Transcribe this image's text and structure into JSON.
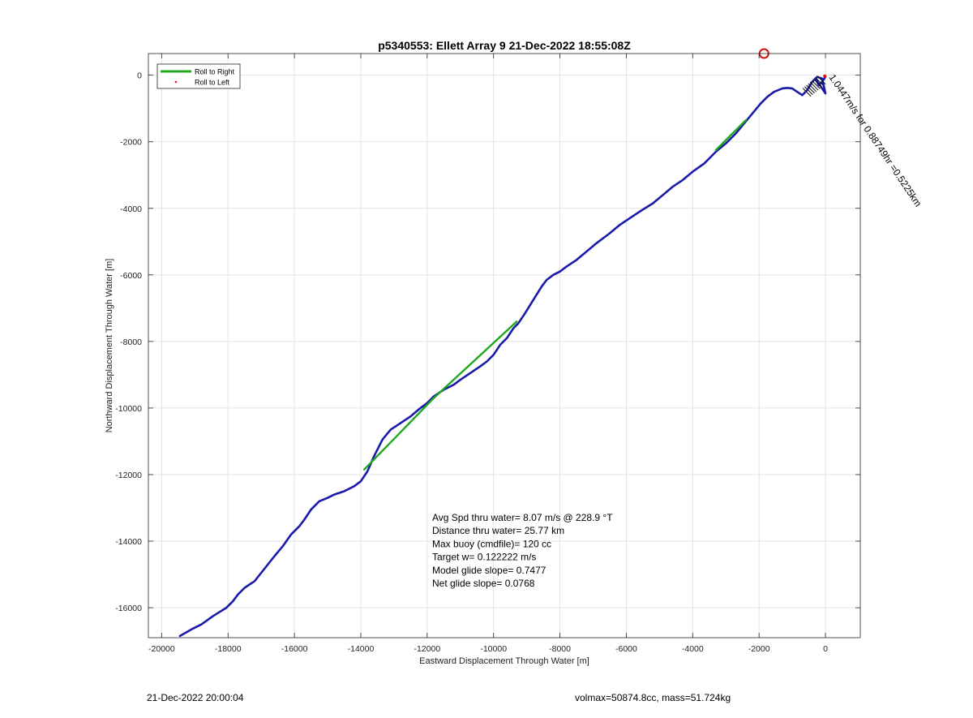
{
  "chart_data": {
    "type": "line",
    "title": "p5340553: Ellett Array 9 21-Dec-2022 18:55:08Z",
    "xlabel": "Eastward Displacement Through Water [m]",
    "ylabel": "Northward Displacement Through Water [m]",
    "xlim": [
      -20400,
      1050
    ],
    "ylim": [
      -16900,
      650
    ],
    "xticks": [
      -20000,
      -18000,
      -16000,
      -14000,
      -12000,
      -10000,
      -8000,
      -6000,
      -4000,
      -2000,
      0
    ],
    "yticks": [
      0,
      -2000,
      -4000,
      -6000,
      -8000,
      -10000,
      -12000,
      -14000,
      -16000
    ],
    "grid": true,
    "legend": {
      "placement": "top-left",
      "entries": [
        {
          "label": "Roll to Right",
          "color": "#1fa81f",
          "style": "line"
        },
        {
          "label": "Roll to Left",
          "color": "#e01010",
          "style": "dot"
        }
      ]
    },
    "series": [
      {
        "name": "Roll to Right",
        "color": "#1fa81f",
        "x": [
          -13900,
          -11800,
          -9300
        ],
        "y": [
          -11850,
          -9700,
          -7400
        ]
      },
      {
        "name": "Roll to Right",
        "color": "#1fa81f",
        "x": [
          -3300,
          -2400
        ],
        "y": [
          -2250,
          -1350
        ]
      },
      {
        "color": "#1a1aaa",
        "x": [
          -19450,
          -19100,
          -18800,
          -18450,
          -18050,
          -17850,
          -17700,
          -17500,
          -17200,
          -17000,
          -16800,
          -16600,
          -16350,
          -16100,
          -15850,
          -15700,
          -15500,
          -15250,
          -15000,
          -14800,
          -14500,
          -14200,
          -14000,
          -13800,
          -13600,
          -13350,
          -13100,
          -12800,
          -12500,
          -12200,
          -12000,
          -11800,
          -11500,
          -11200,
          -11000,
          -10700,
          -10400,
          -10200,
          -10000,
          -9800,
          -9600,
          -9400,
          -9250,
          -9050,
          -8800,
          -8550,
          -8400,
          -8200,
          -8000,
          -7800,
          -7500,
          -7200,
          -6900,
          -6500,
          -6200,
          -5900,
          -5600,
          -5200,
          -4900,
          -4600,
          -4300,
          -4000,
          -3650,
          -3300,
          -3000,
          -2700,
          -2450,
          -2200,
          -1950,
          -1750,
          -1550,
          -1300,
          -1150,
          -1000,
          -850,
          -700,
          -550,
          -400,
          -250,
          -100,
          0,
          -300,
          -200,
          -100,
          0
        ],
        "y": [
          -16850,
          -16650,
          -16500,
          -16250,
          -16000,
          -15800,
          -15600,
          -15400,
          -15200,
          -14950,
          -14700,
          -14450,
          -14150,
          -13800,
          -13550,
          -13350,
          -13050,
          -12800,
          -12700,
          -12600,
          -12500,
          -12350,
          -12200,
          -11900,
          -11450,
          -10950,
          -10650,
          -10450,
          -10250,
          -10000,
          -9850,
          -9650,
          -9450,
          -9300,
          -9150,
          -8950,
          -8750,
          -8600,
          -8400,
          -8100,
          -7900,
          -7600,
          -7450,
          -7150,
          -6750,
          -6350,
          -6150,
          -6000,
          -5900,
          -5750,
          -5550,
          -5300,
          -5050,
          -4750,
          -4500,
          -4300,
          -4100,
          -3850,
          -3600,
          -3350,
          -3150,
          -2900,
          -2650,
          -2300,
          -2050,
          -1750,
          -1450,
          -1150,
          -850,
          -650,
          -500,
          -400,
          -380,
          -400,
          -500,
          -600,
          -450,
          -200,
          -50,
          -100,
          -550,
          -100,
          -300,
          -200,
          -50
        ]
      }
    ],
    "marker": {
      "x": -1850,
      "y": 650,
      "color": "#d01010"
    },
    "annotations": [
      {
        "text": "Avg Spd thru water=  8.07 m/s @ 228.9 °T"
      },
      {
        "text": "Distance thru water= 25.77 km"
      },
      {
        "text": "Max buoy (cmdfile)= 120 cc"
      },
      {
        "text": "Target w= 0.122222 m/s"
      },
      {
        "text": "Model glide slope= 0.7477"
      },
      {
        "text": "Net glide slope= 0.0768"
      }
    ],
    "rotated_label": "1.0447m/s for 0.88749hr =0.5225km",
    "footer_left": "21-Dec-2022 20:00:04",
    "footer_right": "volmax=50874.8cc, mass=51.724kg"
  }
}
